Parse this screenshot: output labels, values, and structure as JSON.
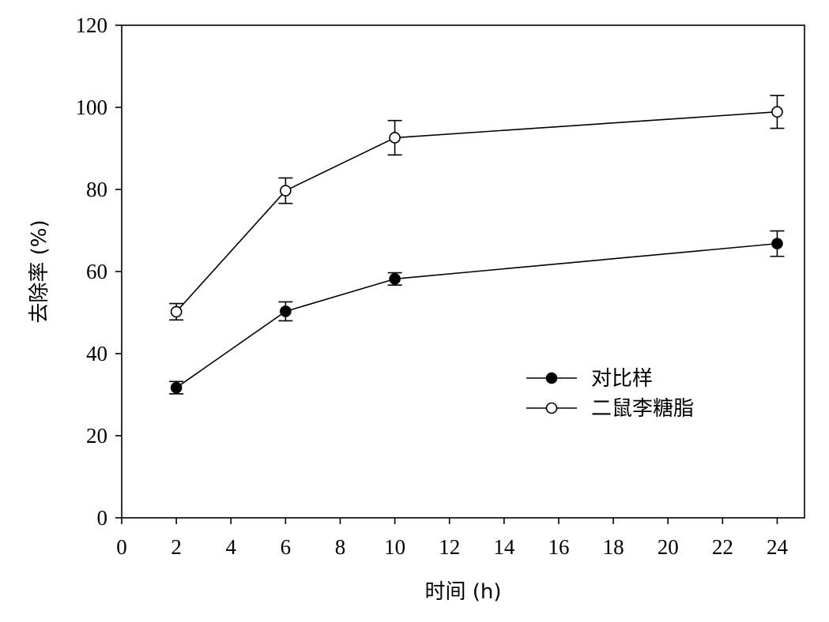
{
  "chart_data": {
    "type": "line",
    "title": "",
    "xlabel": "时间 (h)",
    "ylabel": "去除率 (%)",
    "xlim": [
      0,
      25
    ],
    "ylim": [
      0,
      120
    ],
    "x_ticks": [
      0,
      2,
      4,
      6,
      8,
      10,
      12,
      14,
      16,
      18,
      20,
      22,
      24
    ],
    "y_ticks": [
      0,
      20,
      40,
      60,
      80,
      100,
      120
    ],
    "grid": false,
    "legend_position": "center-right",
    "series": [
      {
        "name": "对比样",
        "marker": "filled-circle",
        "color": "#000000",
        "x": [
          2,
          6,
          10,
          24
        ],
        "y": [
          31.7,
          50.3,
          58.2,
          66.8
        ],
        "error": [
          1.5,
          2.3,
          1.5,
          3.1
        ]
      },
      {
        "name": "二鼠李糖脂",
        "marker": "open-circle",
        "color": "#000000",
        "x": [
          2,
          6,
          10,
          24
        ],
        "y": [
          50.2,
          79.7,
          92.6,
          98.9
        ],
        "error": [
          2.0,
          3.1,
          4.2,
          4.0
        ]
      }
    ]
  }
}
